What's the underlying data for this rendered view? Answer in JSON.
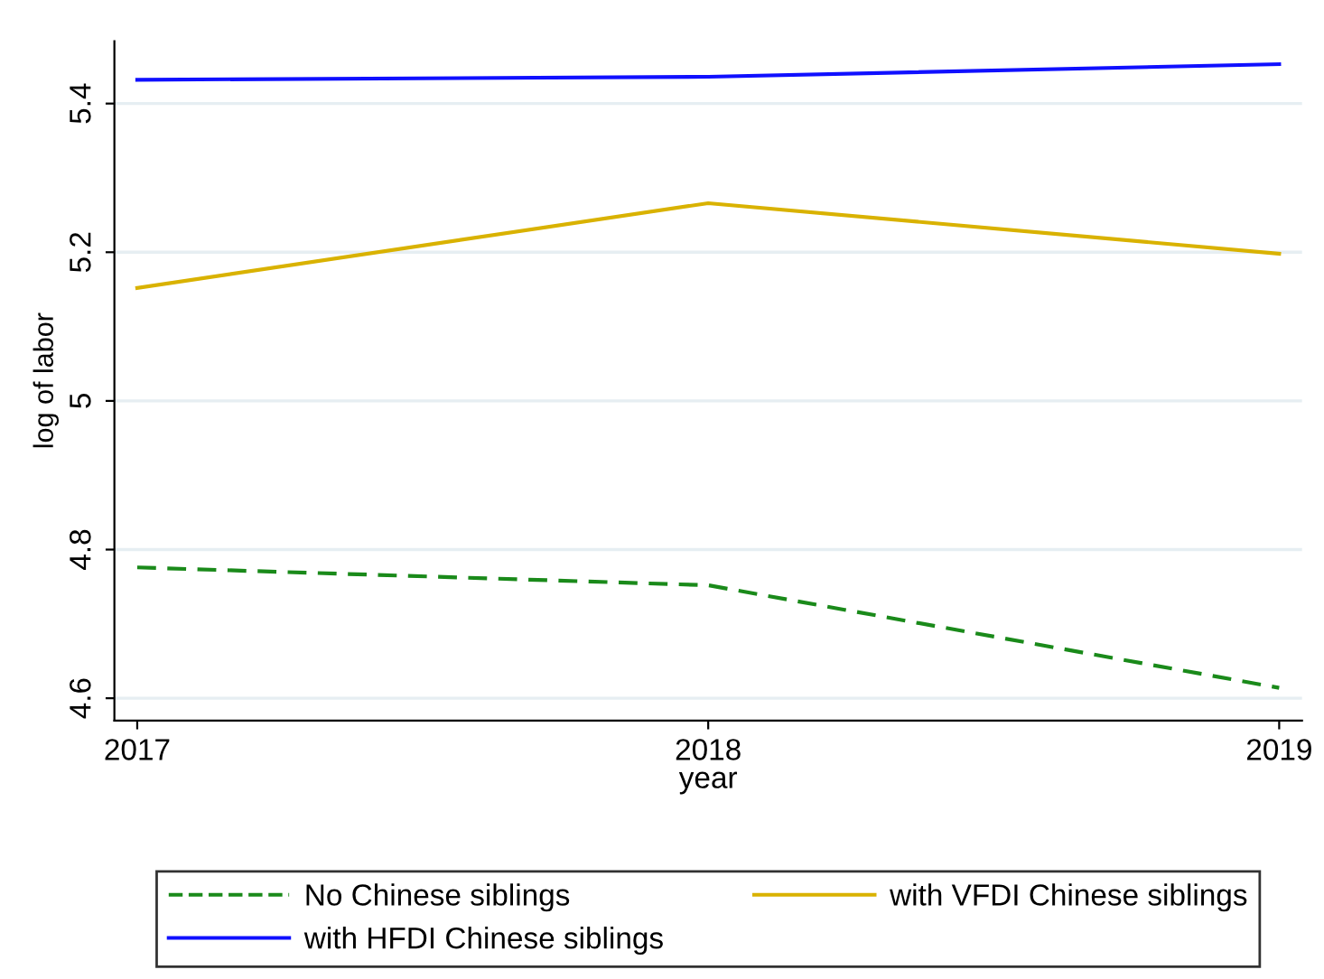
{
  "chart_data": {
    "type": "line",
    "xlabel": "year",
    "ylabel": "log of labor",
    "x": [
      2017,
      2018,
      2019
    ],
    "series": [
      {
        "name": "No Chinese siblings",
        "color": "#1a8a1a",
        "values": [
          4.776,
          4.752,
          4.614
        ],
        "line_style": "dashed"
      },
      {
        "name": "with VFDI Chinese siblings",
        "color": "#d9b200",
        "values": [
          5.152,
          5.266,
          5.198
        ],
        "line_style": "solid"
      },
      {
        "name": "with HFDI Chinese siblings",
        "color": "#1010ff",
        "values": [
          5.432,
          5.436,
          5.453
        ],
        "line_style": "solid"
      }
    ],
    "xlim": [
      2016.96,
      2019.04
    ],
    "xticks": [
      2017,
      2018,
      2019
    ],
    "ylim": [
      4.57,
      5.484
    ],
    "yticks": [
      4.6,
      4.8,
      5,
      5.2,
      5.4
    ],
    "grid": "y",
    "legend": "bottom",
    "marker": "none"
  }
}
